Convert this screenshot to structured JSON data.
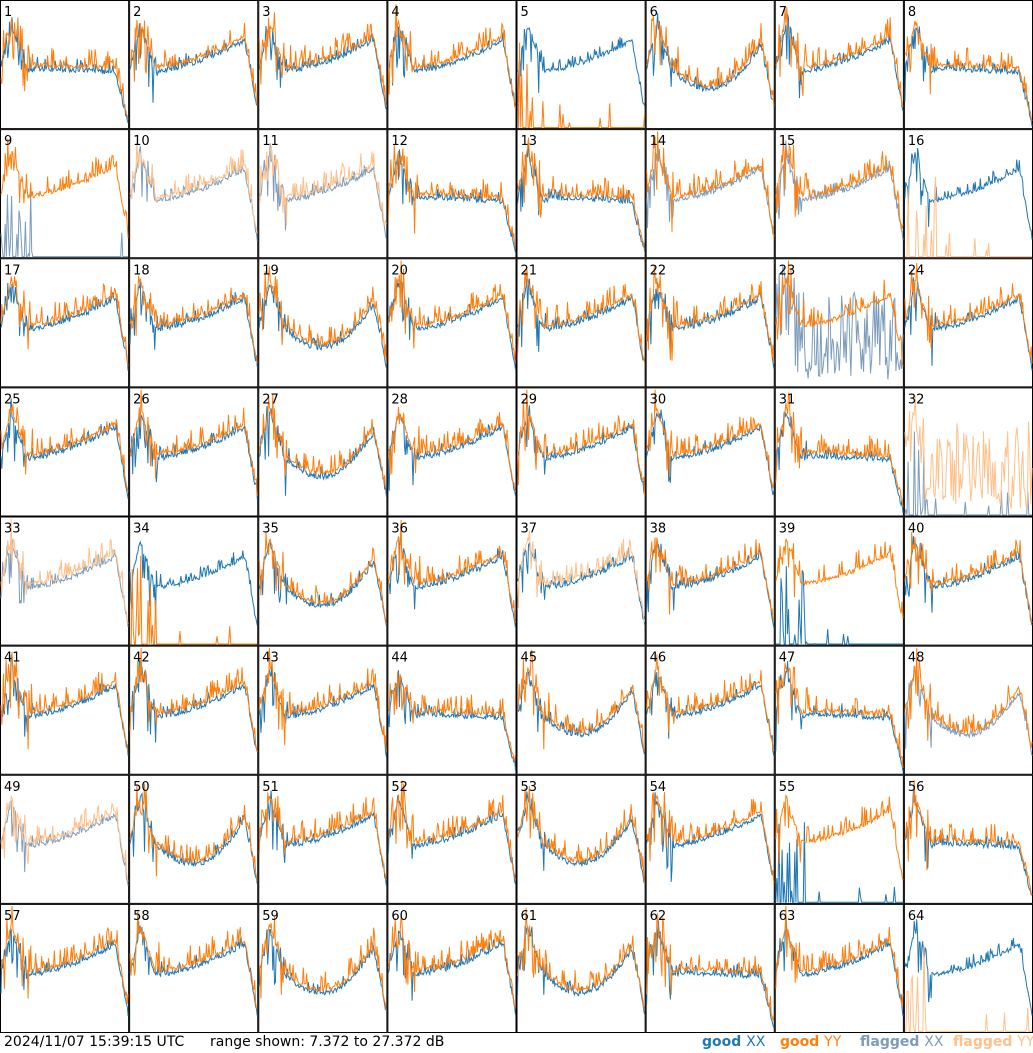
{
  "footer": {
    "timestamp": "2024/11/07 15:39:15 UTC",
    "range": "range shown: 7.372 to 27.372 dB"
  },
  "legend": [
    {
      "key": "gx",
      "word": "good",
      "pol": "XX",
      "color": "#1f77b4"
    },
    {
      "key": "gy",
      "word": "good",
      "pol": "YY",
      "color": "#ff7f0e"
    },
    {
      "key": "fx",
      "word": "flagged",
      "pol": "XX",
      "color": "#7b9cbb"
    },
    {
      "key": "fy",
      "word": "flagged",
      "pol": "YY",
      "color": "#ffc08a"
    }
  ],
  "chart_data": {
    "type": "line",
    "grid": {
      "rows": 8,
      "cols": 8
    },
    "ylim": [
      7.372,
      27.372
    ],
    "units": "dB",
    "panels": [
      {
        "id": 1,
        "xx": "ok",
        "yy": "ok",
        "style": "droop"
      },
      {
        "id": 2,
        "xx": "ok",
        "yy": "ok",
        "style": "std"
      },
      {
        "id": 3,
        "xx": "ok",
        "yy": "ok",
        "style": "std"
      },
      {
        "id": 4,
        "xx": "ok",
        "yy": "ok",
        "style": "std"
      },
      {
        "id": 5,
        "xx": "ok",
        "yy": "dead",
        "style": "std"
      },
      {
        "id": 6,
        "xx": "ok",
        "yy": "ok",
        "style": "dip"
      },
      {
        "id": 7,
        "xx": "ok",
        "yy": "ok",
        "style": "std"
      },
      {
        "id": 8,
        "xx": "ok",
        "yy": "ok",
        "style": "droop"
      },
      {
        "id": 9,
        "xx": "flagged-dead",
        "yy": "ok",
        "style": "std"
      },
      {
        "id": 10,
        "xx": "flagged",
        "yy": "flagged",
        "style": "std"
      },
      {
        "id": 11,
        "xx": "flagged",
        "yy": "flagged",
        "style": "std"
      },
      {
        "id": 12,
        "xx": "ok",
        "yy": "ok",
        "style": "droop"
      },
      {
        "id": 13,
        "xx": "ok",
        "yy": "ok",
        "style": "droop"
      },
      {
        "id": 14,
        "xx": "flagged",
        "yy": "ok",
        "style": "std"
      },
      {
        "id": 15,
        "xx": "flagged",
        "yy": "ok",
        "style": "std"
      },
      {
        "id": 16,
        "xx": "ok",
        "yy": "flagged-dead",
        "style": "std"
      },
      {
        "id": 17,
        "xx": "ok",
        "yy": "ok",
        "style": "std"
      },
      {
        "id": 18,
        "xx": "ok",
        "yy": "ok",
        "style": "std"
      },
      {
        "id": 19,
        "xx": "ok",
        "yy": "ok",
        "style": "dip"
      },
      {
        "id": 20,
        "xx": "ok",
        "yy": "ok",
        "style": "std"
      },
      {
        "id": 21,
        "xx": "ok",
        "yy": "ok",
        "style": "std"
      },
      {
        "id": 22,
        "xx": "ok",
        "yy": "ok",
        "style": "std"
      },
      {
        "id": 23,
        "xx": "flagged-noisy",
        "yy": "ok",
        "style": "std"
      },
      {
        "id": 24,
        "xx": "ok",
        "yy": "ok",
        "style": "std"
      },
      {
        "id": 25,
        "xx": "ok",
        "yy": "ok",
        "style": "std"
      },
      {
        "id": 26,
        "xx": "ok",
        "yy": "ok",
        "style": "std"
      },
      {
        "id": 27,
        "xx": "ok",
        "yy": "ok",
        "style": "dip"
      },
      {
        "id": 28,
        "xx": "ok",
        "yy": "ok",
        "style": "std"
      },
      {
        "id": 29,
        "xx": "ok",
        "yy": "ok",
        "style": "std"
      },
      {
        "id": 30,
        "xx": "ok",
        "yy": "ok",
        "style": "std"
      },
      {
        "id": 31,
        "xx": "ok",
        "yy": "ok",
        "style": "droop"
      },
      {
        "id": 32,
        "xx": "flagged-dead",
        "yy": "flagged-noisy",
        "style": "std"
      },
      {
        "id": 33,
        "xx": "flagged",
        "yy": "flagged",
        "style": "std"
      },
      {
        "id": 34,
        "xx": "ok",
        "yy": "dead",
        "style": "std"
      },
      {
        "id": 35,
        "xx": "ok",
        "yy": "ok",
        "style": "dip"
      },
      {
        "id": 36,
        "xx": "ok",
        "yy": "ok",
        "style": "std"
      },
      {
        "id": 37,
        "xx": "ok",
        "yy": "flagged",
        "style": "std"
      },
      {
        "id": 38,
        "xx": "ok",
        "yy": "ok",
        "style": "std"
      },
      {
        "id": 39,
        "xx": "dead",
        "yy": "ok",
        "style": "std"
      },
      {
        "id": 40,
        "xx": "ok",
        "yy": "ok",
        "style": "std"
      },
      {
        "id": 41,
        "xx": "ok",
        "yy": "ok",
        "style": "std"
      },
      {
        "id": 42,
        "xx": "ok",
        "yy": "ok",
        "style": "std"
      },
      {
        "id": 43,
        "xx": "ok",
        "yy": "ok",
        "style": "std"
      },
      {
        "id": 44,
        "xx": "ok",
        "yy": "ok",
        "style": "droop"
      },
      {
        "id": 45,
        "xx": "ok",
        "yy": "ok",
        "style": "dip"
      },
      {
        "id": 46,
        "xx": "ok",
        "yy": "ok",
        "style": "std"
      },
      {
        "id": 47,
        "xx": "ok",
        "yy": "ok",
        "style": "droop"
      },
      {
        "id": 48,
        "xx": "flagged",
        "yy": "ok",
        "style": "dip"
      },
      {
        "id": 49,
        "xx": "flagged",
        "yy": "flagged",
        "style": "std"
      },
      {
        "id": 50,
        "xx": "ok",
        "yy": "ok",
        "style": "dip"
      },
      {
        "id": 51,
        "xx": "ok",
        "yy": "ok",
        "style": "std"
      },
      {
        "id": 52,
        "xx": "ok",
        "yy": "ok",
        "style": "std"
      },
      {
        "id": 53,
        "xx": "ok",
        "yy": "ok",
        "style": "dip"
      },
      {
        "id": 54,
        "xx": "ok",
        "yy": "ok",
        "style": "std"
      },
      {
        "id": 55,
        "xx": "dead",
        "yy": "ok",
        "style": "std"
      },
      {
        "id": 56,
        "xx": "ok",
        "yy": "ok",
        "style": "droop"
      },
      {
        "id": 57,
        "xx": "ok",
        "yy": "ok",
        "style": "std"
      },
      {
        "id": 58,
        "xx": "ok",
        "yy": "ok",
        "style": "std"
      },
      {
        "id": 59,
        "xx": "ok",
        "yy": "ok",
        "style": "dip"
      },
      {
        "id": 60,
        "xx": "ok",
        "yy": "ok",
        "style": "std"
      },
      {
        "id": 61,
        "xx": "ok",
        "yy": "ok",
        "style": "dip"
      },
      {
        "id": 62,
        "xx": "ok",
        "yy": "ok",
        "style": "droop"
      },
      {
        "id": 63,
        "xx": "ok",
        "yy": "ok",
        "style": "std"
      },
      {
        "id": 64,
        "xx": "ok",
        "yy": "flagged-dead",
        "style": "std"
      }
    ]
  }
}
